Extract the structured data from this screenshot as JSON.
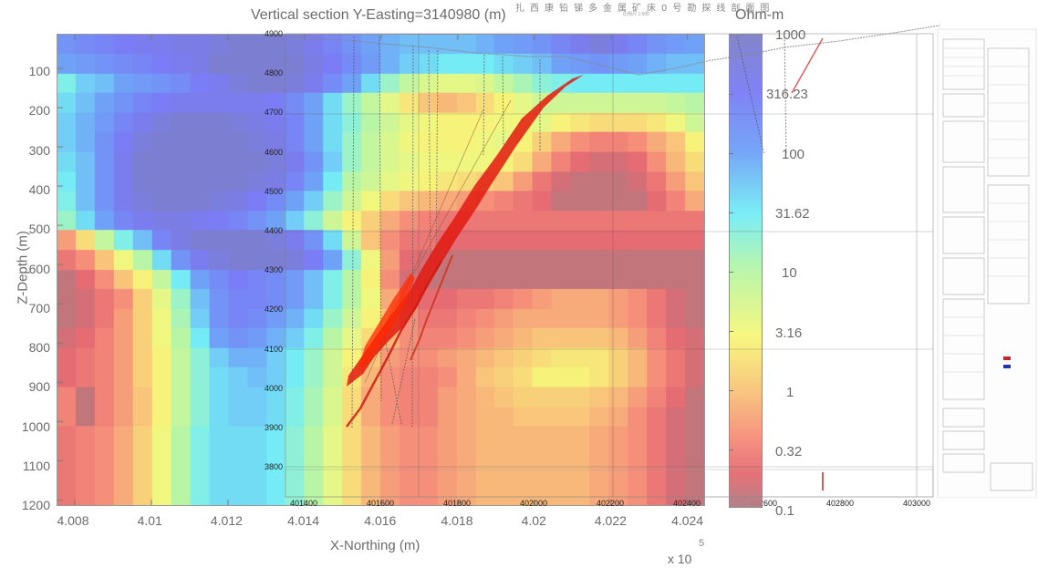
{
  "figure": {
    "title": "Vertical section Y-Easting=3140980 (m)",
    "overlay_title_cn": "扎西康铅锑多金属矿床0号勘探线剖面图",
    "overlay_subtitle": "比例尺 1:500",
    "colorbar_unit": "Ohm-m",
    "xlabel": "X-Northing (m)",
    "x_multiplier": "x 10",
    "x_multiplier_exp": "5",
    "ylabel": "Z-Depth (m)"
  },
  "axes": {
    "y_ticks": [
      "100",
      "200",
      "300",
      "400",
      "500",
      "600",
      "700",
      "800",
      "900",
      "1000",
      "1100",
      "1200"
    ],
    "x_ticks": [
      "4.008",
      "4.01",
      "4.012",
      "4.014",
      "4.016",
      "4.018",
      "4.02",
      "4.022",
      "4.024"
    ],
    "overlay_y_ticks": [
      "4900",
      "4800",
      "4700",
      "4600",
      "4500",
      "4400",
      "4300",
      "4200",
      "4100",
      "4000",
      "3900",
      "3800"
    ],
    "overlay_x_ticks": [
      "401400",
      "401600",
      "401800",
      "402000",
      "402200",
      "402400",
      "402600",
      "402800",
      "403000"
    ]
  },
  "colorbar": {
    "ticks": [
      "1000",
      "316.23",
      "100",
      "31.62",
      "10",
      "3.16",
      "1",
      "0.32",
      "0.1"
    ]
  },
  "chart_data": {
    "type": "heatmap",
    "title": "Vertical section Y-Easting=3140980 (m)",
    "xlabel": "X-Northing (m)",
    "ylabel": "Z-Depth (m)",
    "xlim": [
      400760,
      402460
    ],
    "ylim": [
      1200,
      0
    ],
    "x_scale_note": "x 10^5",
    "colorbar": {
      "label": "Ohm-m",
      "scale": "log",
      "range": [
        0.1,
        1000
      ],
      "ticks": [
        1000,
        316.23,
        100,
        31.62,
        10,
        3.16,
        1,
        0.32,
        0.1
      ]
    },
    "colormap": "jet (semi-transparent)",
    "x_ticks": [
      4.008,
      4.01,
      4.012,
      4.014,
      4.016,
      4.018,
      4.02,
      4.022,
      4.024
    ],
    "y_ticks": [
      100,
      200,
      300,
      400,
      500,
      600,
      700,
      800,
      900,
      1000,
      1100,
      1200
    ],
    "grid_columns_x_1e5": [
      4.0076,
      4.0081,
      4.0086,
      4.0091,
      4.0096,
      4.0101,
      4.0106,
      4.0111,
      4.0116,
      4.0121,
      4.0126,
      4.0131,
      4.0136,
      4.0141,
      4.0146,
      4.0151,
      4.0156,
      4.0161,
      4.0166,
      4.0171,
      4.0176,
      4.0181,
      4.0186,
      4.0191,
      4.0196,
      4.0201,
      4.0206,
      4.0211,
      4.0216,
      4.0221,
      4.0226,
      4.0231,
      4.0236,
      4.0241
    ],
    "grid_rows_depth": [
      25,
      75,
      125,
      175,
      225,
      275,
      325,
      375,
      425,
      475,
      525,
      575,
      625,
      675,
      725,
      775,
      825,
      875,
      925,
      975,
      1025,
      1075,
      1125,
      1175
    ],
    "log10_resistivity_estimate": [
      [
        2.2,
        2.3,
        2.4,
        2.5,
        2.6,
        2.6,
        2.7,
        2.7,
        2.8,
        2.9,
        2.9,
        2.9,
        2.8,
        2.6,
        2.4,
        2.2,
        2.0,
        1.9,
        1.8,
        1.8,
        1.8,
        1.8,
        1.9,
        2.0,
        2.1,
        2.2,
        2.4,
        2.6,
        2.8,
        2.6,
        2.4,
        2.2,
        2.1,
        2.0
      ],
      [
        2.0,
        2.1,
        2.2,
        2.3,
        2.4,
        2.5,
        2.6,
        2.7,
        2.9,
        2.9,
        2.9,
        2.9,
        2.9,
        2.7,
        2.5,
        2.3,
        2.1,
        1.9,
        1.7,
        1.6,
        1.5,
        1.5,
        1.5,
        1.6,
        1.7,
        1.8,
        2.0,
        2.1,
        2.2,
        2.1,
        2.0,
        1.9,
        1.8,
        1.8
      ],
      [
        1.4,
        1.7,
        1.8,
        2.0,
        2.1,
        2.2,
        2.3,
        2.5,
        2.6,
        2.8,
        2.9,
        2.9,
        2.8,
        2.6,
        2.3,
        2.0,
        1.6,
        1.2,
        0.9,
        0.7,
        0.6,
        0.6,
        0.7,
        0.9,
        1.1,
        1.3,
        1.4,
        1.5,
        1.5,
        1.5,
        1.5,
        1.5,
        1.5,
        1.5
      ],
      [
        1.6,
        1.8,
        2.0,
        2.2,
        2.4,
        2.5,
        2.6,
        2.6,
        2.6,
        2.6,
        2.6,
        2.5,
        2.3,
        2.0,
        1.6,
        1.2,
        0.9,
        0.6,
        0.3,
        0.0,
        -0.1,
        0.0,
        0.2,
        0.4,
        0.6,
        0.8,
        0.8,
        0.8,
        0.8,
        0.8,
        0.8,
        0.8,
        0.9,
        1.0
      ],
      [
        1.7,
        1.9,
        2.1,
        2.4,
        2.6,
        2.8,
        2.9,
        2.9,
        2.9,
        2.8,
        2.7,
        2.6,
        2.4,
        2.0,
        1.6,
        1.3,
        1.0,
        0.8,
        0.6,
        0.5,
        0.4,
        0.4,
        0.4,
        0.5,
        0.5,
        0.6,
        0.4,
        0.3,
        0.2,
        0.2,
        0.2,
        0.3,
        0.5,
        0.8
      ],
      [
        1.7,
        1.9,
        2.2,
        2.5,
        2.8,
        2.9,
        2.9,
        2.9,
        2.9,
        2.9,
        2.8,
        2.7,
        2.4,
        2.0,
        1.6,
        1.2,
        0.9,
        0.7,
        0.5,
        0.4,
        0.4,
        0.4,
        0.5,
        0.6,
        0.4,
        0.1,
        -0.2,
        -0.4,
        -0.5,
        -0.5,
        -0.4,
        -0.2,
        0.0,
        0.4
      ],
      [
        1.6,
        1.8,
        2.2,
        2.6,
        2.9,
        2.9,
        2.9,
        2.9,
        2.9,
        2.9,
        2.9,
        2.8,
        2.6,
        2.2,
        1.7,
        1.2,
        0.9,
        0.7,
        0.6,
        0.5,
        0.5,
        0.5,
        0.5,
        0.4,
        0.2,
        -0.2,
        -0.5,
        -0.7,
        -0.8,
        -0.8,
        -0.7,
        -0.4,
        -0.1,
        0.2
      ],
      [
        1.5,
        1.8,
        2.2,
        2.6,
        2.9,
        2.9,
        2.9,
        2.9,
        2.9,
        2.9,
        2.8,
        2.7,
        2.4,
        2.0,
        1.5,
        1.0,
        0.8,
        0.6,
        0.5,
        0.4,
        0.3,
        0.2,
        0.1,
        0.0,
        -0.3,
        -0.6,
        -0.8,
        -0.9,
        -0.9,
        -0.9,
        -0.8,
        -0.6,
        -0.3,
        0.0
      ],
      [
        1.4,
        1.8,
        2.2,
        2.6,
        2.8,
        2.9,
        2.9,
        2.9,
        2.8,
        2.7,
        2.5,
        2.3,
        2.0,
        1.7,
        1.2,
        0.8,
        0.5,
        0.2,
        0.0,
        -0.1,
        -0.2,
        -0.3,
        -0.4,
        -0.5,
        -0.6,
        -0.7,
        -0.9,
        -0.9,
        -0.9,
        -0.9,
        -0.9,
        -0.7,
        -0.5,
        -0.2
      ],
      [
        1.2,
        1.6,
        2.0,
        2.4,
        2.6,
        2.7,
        2.7,
        2.6,
        2.5,
        2.4,
        2.2,
        2.0,
        1.7,
        1.3,
        0.8,
        0.4,
        0.1,
        -0.2,
        -0.4,
        -0.5,
        -0.6,
        -0.6,
        -0.6,
        -0.6,
        -0.6,
        -0.6,
        -0.6,
        -0.6,
        -0.6,
        -0.6,
        -0.6,
        -0.6,
        -0.6,
        -0.6
      ],
      [
        -0.3,
        0.2,
        0.9,
        1.4,
        1.8,
        2.4,
        2.7,
        2.9,
        2.9,
        2.9,
        2.9,
        2.8,
        2.6,
        2.2,
        1.6,
        0.8,
        0.0,
        -0.4,
        -0.6,
        -0.6,
        -0.7,
        -0.7,
        -0.7,
        -0.7,
        -0.7,
        -0.7,
        -0.7,
        -0.7,
        -0.7,
        -0.7,
        -0.7,
        -0.7,
        -0.7,
        -0.7
      ],
      [
        -0.6,
        -0.4,
        0.0,
        0.5,
        1.0,
        1.6,
        2.2,
        2.6,
        2.8,
        2.9,
        2.9,
        2.9,
        2.8,
        2.5,
        2.0,
        1.3,
        0.5,
        -0.3,
        -0.7,
        -0.8,
        -0.9,
        -0.9,
        -0.9,
        -0.9,
        -0.9,
        -0.9,
        -0.9,
        -0.9,
        -0.9,
        -0.9,
        -0.9,
        -0.9,
        -0.9,
        -0.9
      ],
      [
        -0.9,
        -0.7,
        -0.4,
        0.0,
        0.4,
        0.9,
        1.5,
        2.0,
        2.3,
        2.5,
        2.4,
        2.3,
        2.1,
        1.8,
        1.4,
        1.0,
        0.4,
        -0.4,
        -0.8,
        -0.9,
        -0.9,
        -0.9,
        -0.9,
        -0.9,
        -0.9,
        -0.9,
        -0.9,
        -0.9,
        -0.9,
        -0.9,
        -0.9,
        -0.9,
        -0.9,
        -0.9
      ],
      [
        -0.9,
        -0.8,
        -0.6,
        -0.4,
        0.1,
        0.6,
        1.2,
        1.8,
        2.2,
        2.4,
        2.4,
        2.3,
        2.1,
        1.8,
        1.4,
        1.0,
        0.5,
        -0.2,
        -0.6,
        -0.7,
        -0.7,
        -0.6,
        -0.6,
        -0.5,
        -0.4,
        -0.3,
        -0.2,
        -0.2,
        -0.2,
        -0.3,
        -0.4,
        -0.6,
        -0.8,
        -0.9
      ],
      [
        -0.9,
        -0.8,
        -0.6,
        -0.3,
        0.1,
        0.5,
        1.1,
        1.7,
        2.2,
        2.4,
        2.3,
        2.1,
        1.9,
        1.6,
        1.2,
        0.8,
        0.4,
        0.0,
        -0.4,
        -0.6,
        -0.6,
        -0.5,
        -0.4,
        -0.3,
        -0.2,
        -0.2,
        -0.2,
        -0.2,
        -0.2,
        -0.3,
        -0.4,
        -0.6,
        -0.8,
        -0.9
      ],
      [
        -0.8,
        -0.7,
        -0.5,
        -0.3,
        0.1,
        0.5,
        1.0,
        1.5,
        2.0,
        2.2,
        2.1,
        1.9,
        1.7,
        1.4,
        1.0,
        0.6,
        0.2,
        -0.1,
        -0.4,
        -0.5,
        -0.5,
        -0.4,
        -0.3,
        -0.2,
        -0.1,
        0.0,
        0.0,
        0.0,
        0.0,
        -0.1,
        -0.3,
        -0.5,
        -0.7,
        -0.8
      ],
      [
        -0.7,
        -0.6,
        -0.5,
        -0.3,
        0.1,
        0.4,
        0.9,
        1.3,
        1.7,
        1.9,
        1.9,
        1.7,
        1.5,
        1.2,
        0.8,
        0.4,
        0.0,
        -0.3,
        -0.4,
        -0.4,
        -0.3,
        -0.2,
        -0.1,
        0.0,
        0.1,
        0.2,
        0.3,
        0.3,
        0.3,
        0.1,
        -0.1,
        -0.4,
        -0.6,
        -0.8
      ],
      [
        -0.7,
        -0.6,
        -0.5,
        -0.3,
        0.1,
        0.4,
        0.9,
        1.3,
        1.6,
        1.7,
        1.8,
        1.7,
        1.5,
        1.2,
        0.8,
        0.3,
        -0.1,
        -0.4,
        -0.5,
        -0.5,
        -0.4,
        -0.2,
        0.0,
        0.1,
        0.2,
        0.4,
        0.4,
        0.4,
        0.3,
        0.1,
        -0.1,
        -0.4,
        -0.6,
        -0.8
      ],
      [
        -0.5,
        -0.9,
        -0.5,
        -0.3,
        0.0,
        0.4,
        0.9,
        1.3,
        1.6,
        1.7,
        1.7,
        1.6,
        1.4,
        1.1,
        0.7,
        0.2,
        -0.2,
        -0.4,
        -0.5,
        -0.5,
        -0.3,
        -0.2,
        -0.1,
        0.0,
        0.1,
        0.1,
        0.1,
        0.1,
        0.0,
        -0.1,
        -0.3,
        -0.5,
        -0.7,
        -0.9
      ],
      [
        -0.5,
        -0.9,
        -0.5,
        -0.3,
        0.0,
        0.4,
        0.9,
        1.3,
        1.6,
        1.7,
        1.7,
        1.6,
        1.4,
        1.1,
        0.7,
        0.2,
        -0.2,
        -0.4,
        -0.5,
        -0.5,
        -0.3,
        -0.2,
        -0.1,
        -0.1,
        0.0,
        0.0,
        0.0,
        0.0,
        -0.1,
        -0.2,
        -0.4,
        -0.6,
        -0.8,
        -0.9
      ],
      [
        -0.6,
        -0.5,
        -0.4,
        -0.2,
        0.1,
        0.5,
        1.0,
        1.4,
        1.6,
        1.6,
        1.6,
        1.5,
        1.3,
        1.0,
        0.6,
        0.2,
        -0.1,
        -0.3,
        -0.4,
        -0.4,
        -0.3,
        -0.2,
        -0.1,
        -0.1,
        -0.1,
        -0.1,
        -0.1,
        -0.1,
        -0.2,
        -0.3,
        -0.4,
        -0.6,
        -0.8,
        -0.9
      ],
      [
        -0.6,
        -0.5,
        -0.4,
        -0.2,
        0.1,
        0.5,
        1.0,
        1.4,
        1.6,
        1.6,
        1.6,
        1.5,
        1.3,
        1.0,
        0.6,
        0.2,
        -0.1,
        -0.3,
        -0.4,
        -0.4,
        -0.3,
        -0.2,
        -0.1,
        -0.1,
        -0.1,
        -0.1,
        -0.1,
        -0.1,
        -0.2,
        -0.3,
        -0.4,
        -0.6,
        -0.8,
        -0.9
      ],
      [
        -0.6,
        -0.5,
        -0.4,
        -0.2,
        0.1,
        0.5,
        1.0,
        1.4,
        1.6,
        1.6,
        1.6,
        1.5,
        1.3,
        1.0,
        0.6,
        0.2,
        -0.1,
        -0.3,
        -0.4,
        -0.4,
        -0.3,
        -0.2,
        -0.1,
        -0.1,
        -0.1,
        -0.1,
        -0.1,
        -0.1,
        -0.2,
        -0.3,
        -0.4,
        -0.6,
        -0.8,
        -0.9
      ],
      [
        -0.6,
        -0.5,
        -0.4,
        -0.2,
        0.1,
        0.5,
        1.0,
        1.4,
        1.6,
        1.6,
        1.6,
        1.5,
        1.3,
        1.0,
        0.6,
        0.2,
        -0.1,
        -0.3,
        -0.4,
        -0.4,
        -0.3,
        -0.2,
        -0.1,
        -0.1,
        -0.1,
        -0.1,
        -0.1,
        -0.1,
        -0.2,
        -0.3,
        -0.4,
        -0.6,
        -0.8,
        -0.9
      ]
    ],
    "overlay": {
      "type": "geological cross-section drawing (semi-transparent)",
      "elevation_ticks_m": [
        4900,
        4800,
        4700,
        4600,
        4500,
        4400,
        4300,
        4200,
        4100,
        4000,
        3900,
        3800
      ],
      "northing_ticks_m": [
        401400,
        401600,
        401800,
        402000,
        402200,
        402400,
        402600,
        402800,
        403000
      ],
      "features": [
        "dipping red ore body (vein)",
        "drill hole traces",
        "topographic surface line",
        "legend and data tables at right"
      ]
    }
  }
}
